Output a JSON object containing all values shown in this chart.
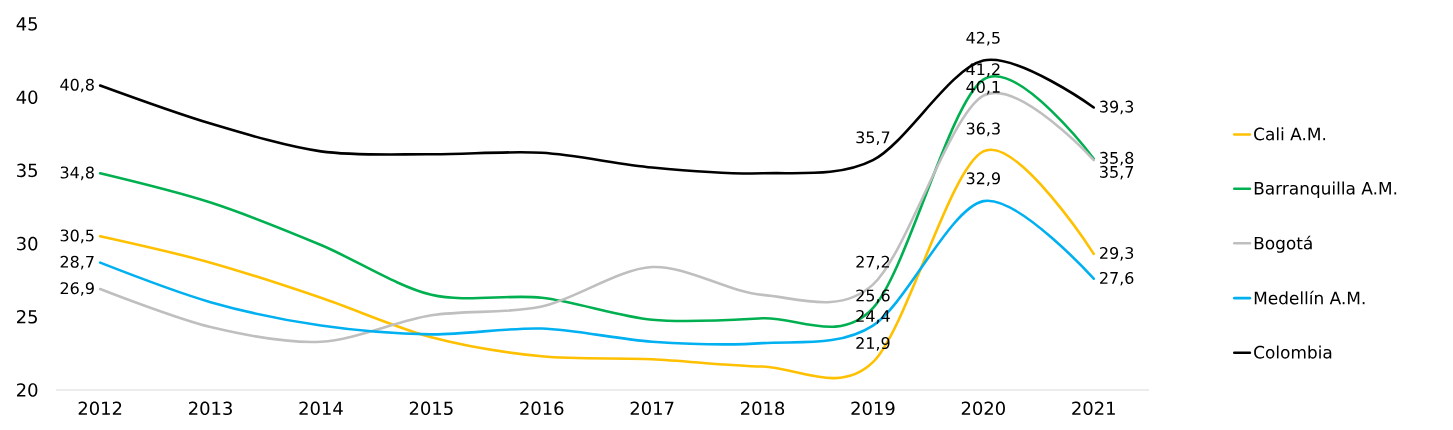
{
  "chart_data": {
    "type": "line",
    "categories": [
      "2012",
      "2013",
      "2014",
      "2015",
      "2016",
      "2017",
      "2018",
      "2019",
      "2020",
      "2021"
    ],
    "ylim": [
      20,
      45
    ],
    "yticks": [
      20,
      25,
      30,
      35,
      40,
      45
    ],
    "legend": "right",
    "grid": false,
    "series": [
      {
        "name": "Cali A.M.",
        "color": "#ffc000",
        "values": [
          30.5,
          28.7,
          26.3,
          23.6,
          22.3,
          22.1,
          21.6,
          21.9,
          36.3,
          29.3
        ],
        "value_labels": [
          "30,5",
          null,
          null,
          null,
          null,
          null,
          null,
          "21,9",
          "36,3",
          "29,3"
        ]
      },
      {
        "name": "Barranquilla A.M.",
        "color": "#00b050",
        "values": [
          34.8,
          32.8,
          29.9,
          26.5,
          26.3,
          24.8,
          24.9,
          25.6,
          41.2,
          35.8
        ],
        "value_labels": [
          "34,8",
          null,
          null,
          null,
          null,
          null,
          null,
          "25,6",
          "41,2",
          "35,8"
        ]
      },
      {
        "name": "Bogotá",
        "color": "#bfbfbf",
        "values": [
          26.9,
          24.3,
          23.3,
          25.1,
          25.7,
          28.4,
          26.5,
          27.2,
          40.1,
          35.7
        ],
        "value_labels": [
          "26,9",
          null,
          null,
          null,
          null,
          null,
          null,
          "27,2",
          "40,1",
          "35,7"
        ]
      },
      {
        "name": "Medellín A.M.",
        "color": "#00b0f0",
        "values": [
          28.7,
          26.0,
          24.4,
          23.8,
          24.2,
          23.3,
          23.2,
          24.4,
          32.9,
          27.6
        ],
        "value_labels": [
          "28,7",
          null,
          null,
          null,
          null,
          null,
          null,
          "24,4",
          "32,9",
          "27,6"
        ]
      },
      {
        "name": "Colombia",
        "color": "#000000",
        "values": [
          40.8,
          38.2,
          36.3,
          36.1,
          36.2,
          35.2,
          34.8,
          35.7,
          42.5,
          39.3
        ],
        "value_labels": [
          "40,8",
          null,
          null,
          null,
          null,
          null,
          null,
          "35,7",
          "42,5",
          "39,3"
        ]
      }
    ]
  }
}
